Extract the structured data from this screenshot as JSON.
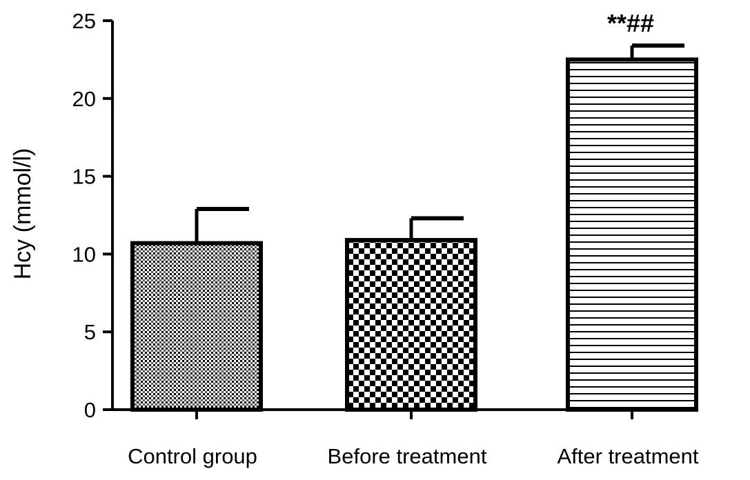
{
  "chart_data": {
    "type": "bar",
    "title": "",
    "xlabel": "",
    "ylabel": "Hcy (mmol/l)",
    "ylim": [
      0,
      25
    ],
    "yticks": [
      0,
      5,
      10,
      15,
      20,
      25
    ],
    "grid": false,
    "categories": [
      "Control group",
      "Before treatment",
      "After treatment"
    ],
    "values": [
      10.7,
      10.9,
      22.5
    ],
    "errors": [
      2.2,
      1.4,
      0.9
    ],
    "patterns": [
      "fine-dots",
      "checkerboard",
      "horizontal-lines"
    ],
    "annotations": [
      "",
      "",
      "**##"
    ],
    "colors": {
      "stroke": "#000000",
      "fill": "#ffffff"
    }
  }
}
